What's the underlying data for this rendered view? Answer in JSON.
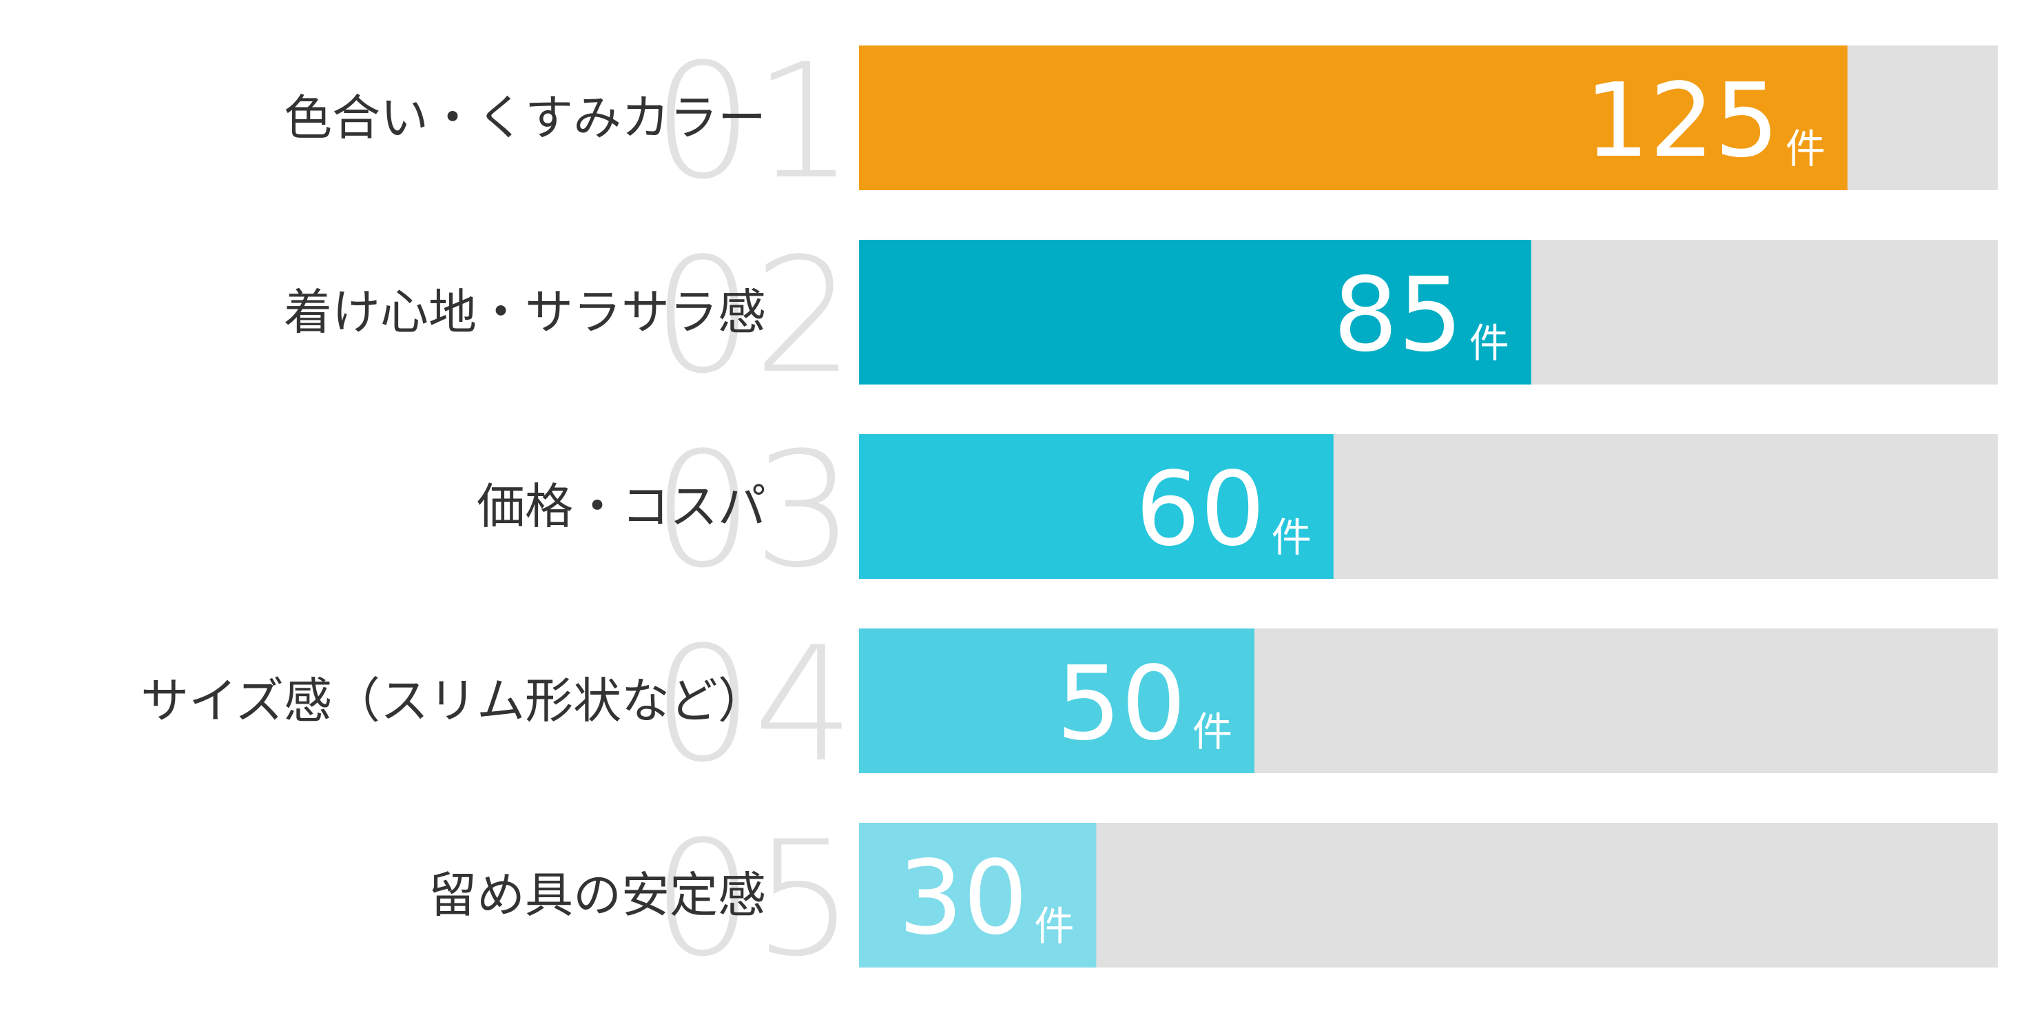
{
  "chart_data": {
    "type": "bar",
    "orientation": "horizontal",
    "categories": [
      "色合い・くすみカラー",
      "着け心地・サラサラ感",
      "価格・コスパ",
      "サイズ感（スリム形状など）",
      "留め具の安定感"
    ],
    "ranks": [
      "01",
      "02",
      "03",
      "04",
      "05"
    ],
    "values": [
      125,
      85,
      60,
      50,
      30
    ],
    "unit": "件",
    "xlim": [
      0,
      144
    ],
    "grid": false,
    "legend": "none",
    "colors": {
      "bars": [
        "#f29c14",
        "#00adc4",
        "#26c6dc",
        "#4fd0e2",
        "#80dcea"
      ],
      "track": "#e0e0e0",
      "rank_number": "#e2e2e2",
      "label_text": "#333333",
      "value_text": "#ffffff"
    }
  }
}
